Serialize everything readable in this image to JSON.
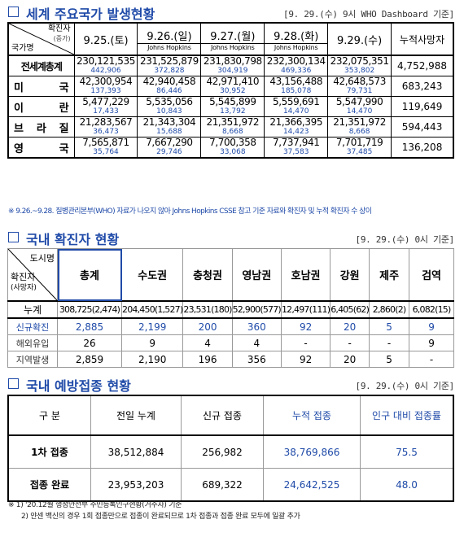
{
  "world": {
    "title": "세계 주요국가 발생현황",
    "stamp": "[9. 29.(수) 9시 WHO Dashboard 기준]",
    "header": {
      "diag_top": "확진자",
      "diag_mid": "(증가)",
      "diag_bottom": "국가명",
      "dates": [
        "9.25.(토)",
        "9.26.(일)",
        "9.27.(월)",
        "9.28.(화)",
        "9.29.(수)"
      ],
      "sources": [
        "Johns Hopkins",
        "Johns Hopkins",
        "Johns Hopkins"
      ],
      "deaths": "누적사망자"
    },
    "rows": [
      {
        "name": "전세계총계",
        "cases": [
          "230,121,535",
          "231,525,879",
          "231,830,798",
          "232,300,134",
          "232,075,351"
        ],
        "incr": [
          "442,906",
          "372,828",
          "304,919",
          "469,336",
          "353,802"
        ],
        "deaths": "4,752,988"
      },
      {
        "name": "미 국",
        "cases": [
          "42,300,954",
          "42,940,458",
          "42,971,410",
          "43,156,488",
          "42,648,573"
        ],
        "incr": [
          "137,393",
          "86,446",
          "30,952",
          "185,078",
          "79,731"
        ],
        "deaths": "683,243"
      },
      {
        "name": "이 란",
        "cases": [
          "5,477,229",
          "5,535,056",
          "5,545,899",
          "5,559,691",
          "5,547,990"
        ],
        "incr": [
          "17,433",
          "10,843",
          "13,792",
          "14,470",
          "14,470"
        ],
        "deaths": "119,649"
      },
      {
        "name": "브 라 질",
        "cases": [
          "21,283,567",
          "21,343,304",
          "21,351,972",
          "21,366,395",
          "21,351,972"
        ],
        "incr": [
          "36,473",
          "15,688",
          "8,668",
          "14,423",
          "8,668"
        ],
        "deaths": "594,443"
      },
      {
        "name": "영 국",
        "cases": [
          "7,565,871",
          "7,667,290",
          "7,700,358",
          "7,737,941",
          "7,701,719"
        ],
        "incr": [
          "35,764",
          "29,746",
          "33,068",
          "37,583",
          "37,485"
        ],
        "deaths": "136,208"
      }
    ],
    "note": "※ 9.26.~9.28. 질병관리본부(WHO) 자료가 나오지 않아 Johns Hopkins CSSE 참고 기준 자료와 확진자 및 누적 확진자 수 상이"
  },
  "domestic": {
    "title": "국내 확진자 현황",
    "stamp": "[9. 29.(수) 0시 기준]",
    "corner_top": "도시명",
    "corner_mid": "확진자",
    "corner_bottom": "(사망자)",
    "columns": [
      "총계",
      "수도권",
      "충청권",
      "영남권",
      "호남권",
      "강원",
      "제주",
      "검역"
    ],
    "rows": [
      {
        "label": "누계",
        "values": [
          "308,725(2,474)",
          "204,450(1,527)",
          "23,531(180)",
          "52,900(577)",
          "12,497(111)",
          "6,405(62)",
          "2,860(2)",
          "6,082(15)"
        ]
      },
      {
        "label": "신규확진",
        "values": [
          "2,885",
          "2,199",
          "200",
          "360",
          "92",
          "20",
          "5",
          "9"
        ]
      },
      {
        "label": "해외유입",
        "values": [
          "26",
          "9",
          "4",
          "4",
          "-",
          "-",
          "-",
          "9"
        ]
      },
      {
        "label": "지역발생",
        "values": [
          "2,859",
          "2,190",
          "196",
          "356",
          "92",
          "20",
          "5",
          "-"
        ]
      }
    ]
  },
  "vaccine": {
    "title": "국내 예방접종 현황",
    "stamp": "[9. 29.(수) 0시 기준]",
    "headers": [
      "구 분",
      "전일 누계",
      "신규 접종",
      "누적 접종",
      "인구 대비 접종률"
    ],
    "rows": [
      {
        "label": "1차 접종",
        "values": [
          "38,512,884",
          "256,982",
          "38,769,866",
          "75.5"
        ]
      },
      {
        "label": "접종 완료",
        "values": [
          "23,953,203",
          "689,322",
          "24,642,525",
          "48.0"
        ]
      }
    ],
    "footnotes": [
      "※ 1) '20.12월 행정안전부 주민등록인구현황(거주자) 기준",
      "2) 얀센 백신의 경우 1회 접종만으로 접종이 완료되므로 1차 접종과 접종 완료 모두에 일괄 추가"
    ]
  },
  "colors": {
    "accent": "#1f4aa8",
    "border": "#000000"
  }
}
